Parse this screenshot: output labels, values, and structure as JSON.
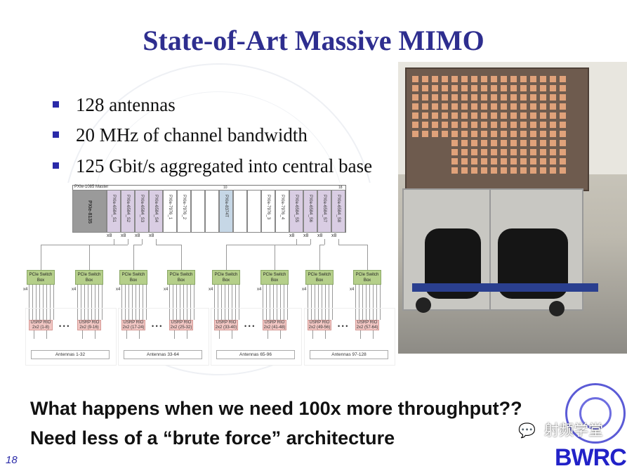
{
  "slide": {
    "title": "State-of-Art Massive MIMO",
    "bullets": [
      "128 antennas",
      "20 MHz of channel bandwidth",
      "125 Gbit/s aggregated into central base"
    ],
    "bottom_text": [
      "What happens when we need 100x more throughput??",
      "Need less of a “brute force” architecture"
    ],
    "page_number": "18",
    "accent_color": "#2e2e8f"
  },
  "diagram": {
    "chassis_label": "PXIe-1085  Master",
    "slot_markers": [
      "10",
      "18"
    ],
    "controller": "PXIe-8135",
    "slots": [
      "PXIe-6584_S1",
      "PXIe-6584_S2",
      "PXIe-6584_S3",
      "PXIe-6584_S4",
      "PXIe-7976_1",
      "PXIe-7976_2",
      "",
      "",
      "PXIe-8374T",
      "",
      "",
      "PXIe-7976_3",
      "PXIe-7976_4",
      "PXIe-6584_S5",
      "PXIe-6584_S6",
      "PXIe-6584_S7",
      "PXIe-6584_S8"
    ],
    "link_label": "x8",
    "switch_label": "PCIe Switch Box",
    "switch_link_label": "x4",
    "usrp": [
      "USRP RIO 2x2 (1-8)",
      "USRP RIO 2x2 (9-16)",
      "USRP RIO 2x2 (17-24)",
      "USRP RIO 2x2 (25-32)",
      "USRP RIO 2x2 (33-40)",
      "USRP RIO 2x2 (41-48)",
      "USRP RIO 2x2 (49-56)",
      "USRP RIO 2x2 (57-64)"
    ],
    "antenna_groups": [
      "Antennas 1-32",
      "Antennas 33-64",
      "Antennas 65-96",
      "Antennas 97-128"
    ]
  },
  "watermark": {
    "wechat_text": "射频学堂",
    "logo_text": "BWRC"
  }
}
